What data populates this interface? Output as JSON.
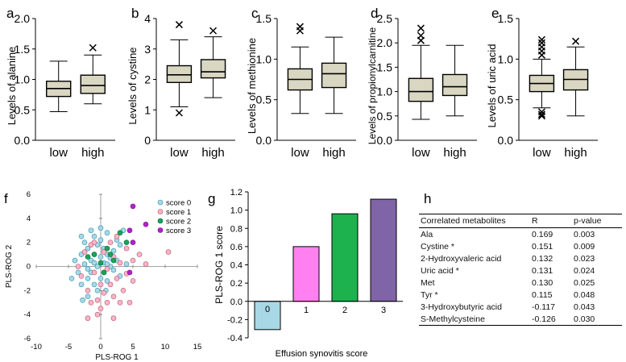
{
  "chart_data": [
    {
      "panel": "a",
      "type": "boxplot",
      "ylabel": "Levels of alanine",
      "ylim": [
        0,
        2
      ],
      "yticks": [
        0,
        0.5,
        1,
        1.5,
        2
      ],
      "categories": [
        "low",
        "high"
      ],
      "boxes": [
        {
          "category": "low",
          "whislo": 0.47,
          "q1": 0.72,
          "med": 0.85,
          "q3": 0.97,
          "whishi": 1.3,
          "fliers": []
        },
        {
          "category": "high",
          "whislo": 0.6,
          "q1": 0.77,
          "med": 0.9,
          "q3": 1.07,
          "whishi": 1.4,
          "fliers": [
            1.52
          ]
        }
      ]
    },
    {
      "panel": "b",
      "type": "boxplot",
      "ylabel": "Levels of cystine",
      "ylim": [
        0,
        4
      ],
      "yticks": [
        0,
        1,
        2,
        3,
        4
      ],
      "categories": [
        "low",
        "high"
      ],
      "boxes": [
        {
          "category": "low",
          "whislo": 1.1,
          "q1": 1.9,
          "med": 2.15,
          "q3": 2.45,
          "whishi": 3.3,
          "fliers": [
            3.8,
            0.9
          ]
        },
        {
          "category": "high",
          "whislo": 1.4,
          "q1": 2.05,
          "med": 2.25,
          "q3": 2.65,
          "whishi": 3.4,
          "fliers": [
            3.6
          ]
        }
      ]
    },
    {
      "panel": "c",
      "type": "boxplot",
      "ylabel": "Levels of methionine",
      "ylim": [
        0,
        1.5
      ],
      "yticks": [
        0,
        0.5,
        1,
        1.5
      ],
      "categories": [
        "low",
        "high"
      ],
      "boxes": [
        {
          "category": "low",
          "whislo": 0.33,
          "q1": 0.62,
          "med": 0.75,
          "q3": 0.88,
          "whishi": 1.15,
          "fliers": [
            1.35,
            1.4
          ]
        },
        {
          "category": "high",
          "whislo": 0.33,
          "q1": 0.65,
          "med": 0.82,
          "q3": 0.95,
          "whishi": 1.27,
          "fliers": []
        }
      ]
    },
    {
      "panel": "d",
      "type": "boxplot",
      "ylabel": "Levels of propionylcarnitine",
      "ylim": [
        0,
        2.5
      ],
      "yticks": [
        0,
        0.5,
        1,
        1.5,
        2,
        2.5
      ],
      "categories": [
        "low",
        "high"
      ],
      "boxes": [
        {
          "category": "low",
          "whislo": 0.43,
          "q1": 0.8,
          "med": 1.0,
          "q3": 1.27,
          "whishi": 1.95,
          "fliers": [
            2.05,
            2.15,
            2.3
          ]
        },
        {
          "category": "high",
          "whislo": 0.5,
          "q1": 0.92,
          "med": 1.1,
          "q3": 1.35,
          "whishi": 1.95,
          "fliers": []
        }
      ]
    },
    {
      "panel": "e",
      "type": "boxplot",
      "ylabel": "Levels of uric acid",
      "ylim": [
        0,
        1.5
      ],
      "yticks": [
        0,
        0.5,
        1,
        1.5
      ],
      "categories": [
        "low",
        "high"
      ],
      "boxes": [
        {
          "category": "low",
          "whislo": 0.4,
          "q1": 0.6,
          "med": 0.7,
          "q3": 0.8,
          "whishi": 1.0,
          "fliers": [
            1.05,
            1.1,
            1.15,
            1.2,
            1.24,
            0.35,
            0.32,
            0.3
          ]
        },
        {
          "category": "high",
          "whislo": 0.3,
          "q1": 0.62,
          "med": 0.75,
          "q3": 0.87,
          "whishi": 1.15,
          "fliers": [
            1.22
          ]
        }
      ]
    },
    {
      "panel": "f",
      "type": "scatter",
      "xlabel": "PLS-ROG 1",
      "ylabel": "PLS-ROG 2",
      "xlim": [
        -10,
        15
      ],
      "ylim": [
        -6,
        6
      ],
      "xticks": [
        -10,
        -5,
        0,
        5,
        10,
        15
      ],
      "yticks": [
        -6,
        -4,
        -2,
        0,
        2,
        4,
        6
      ],
      "legend_position": "top-right",
      "series": [
        {
          "name": "score 0",
          "color": "#a9d8e6",
          "edge": "#2f8fb0",
          "points": [
            [
              -4,
              0.5
            ],
            [
              -3.5,
              -0.5
            ],
            [
              -3,
              1
            ],
            [
              -3,
              -1.5
            ],
            [
              -2.5,
              0.2
            ],
            [
              -2.5,
              2
            ],
            [
              -2,
              -1
            ],
            [
              -2,
              1.5
            ],
            [
              -2,
              -2.5
            ],
            [
              -1.5,
              0.5
            ],
            [
              -1.5,
              3
            ],
            [
              -1.5,
              -0.5
            ],
            [
              -1,
              1
            ],
            [
              -1,
              -1.5
            ],
            [
              -1,
              2.5
            ],
            [
              -0.5,
              0
            ],
            [
              -0.5,
              1.8
            ],
            [
              -0.5,
              -2
            ],
            [
              0,
              0.8
            ],
            [
              0,
              -1
            ],
            [
              0,
              2.2
            ],
            [
              0.5,
              0.3
            ],
            [
              0.5,
              -0.5
            ],
            [
              0.5,
              1.5
            ],
            [
              1,
              1
            ],
            [
              1,
              -1.2
            ],
            [
              1,
              2.8
            ],
            [
              1.5,
              0
            ],
            [
              1.5,
              0.7
            ],
            [
              2,
              -0.3
            ],
            [
              2,
              1.3
            ],
            [
              2.5,
              0.5
            ],
            [
              3,
              -0.8
            ],
            [
              3,
              1.8
            ],
            [
              4,
              0.2
            ],
            [
              -3,
              2.5
            ],
            [
              -4.5,
              -1
            ],
            [
              -2,
              -0.2
            ],
            [
              1,
              0.2
            ],
            [
              2.5,
              2.2
            ],
            [
              0,
              3.2
            ],
            [
              -1,
              0.3
            ],
            [
              0.8,
              -2
            ],
            [
              -2.8,
              -2.8
            ],
            [
              3.5,
              3
            ]
          ]
        },
        {
          "name": "score 1",
          "color": "#f7b6c8",
          "edge": "#c0506a",
          "points": [
            [
              -3,
              -0.8
            ],
            [
              -2.5,
              1.2
            ],
            [
              -2,
              -2
            ],
            [
              -1.5,
              -3
            ],
            [
              -1,
              -0.5
            ],
            [
              -0.5,
              -2.8
            ],
            [
              0,
              -1.5
            ],
            [
              0,
              -3.5
            ],
            [
              0.5,
              -2.2
            ],
            [
              1,
              -0.2
            ],
            [
              1,
              -3
            ],
            [
              1.5,
              -1.5
            ],
            [
              1.5,
              2
            ],
            [
              2,
              -2.5
            ],
            [
              2,
              0.8
            ],
            [
              2.5,
              -1
            ],
            [
              3,
              0.3
            ],
            [
              3.5,
              -2
            ],
            [
              4,
              -0.6
            ],
            [
              4,
              1.5
            ],
            [
              5,
              0.5
            ],
            [
              5,
              -1.2
            ],
            [
              6,
              1
            ],
            [
              7,
              0.2
            ],
            [
              10.5,
              1.2
            ],
            [
              -2,
              -4.3
            ],
            [
              2,
              -4.3
            ],
            [
              -0.5,
              -4
            ],
            [
              -1.5,
              1.8
            ],
            [
              0.5,
              1.2
            ],
            [
              3,
              -3
            ],
            [
              -3.5,
              0
            ],
            [
              2.5,
              2.5
            ],
            [
              -1,
              2
            ],
            [
              4.5,
              -3
            ]
          ]
        },
        {
          "name": "score 2",
          "color": "#1aa35a",
          "edge": "#0b6e38",
          "points": [
            [
              -1,
              1
            ],
            [
              0,
              0.3
            ],
            [
              1,
              1.5
            ],
            [
              2,
              0.5
            ],
            [
              3,
              2.8
            ],
            [
              0.5,
              -0.5
            ],
            [
              4,
              2
            ],
            [
              -2,
              0.8
            ],
            [
              1.5,
              1
            ]
          ]
        },
        {
          "name": "score 3",
          "color": "#b022c8",
          "edge": "#7a0f8c",
          "points": [
            [
              5,
              5
            ],
            [
              7,
              3.5
            ],
            [
              4.5,
              3
            ],
            [
              5,
              2
            ],
            [
              4.5,
              -0.5
            ]
          ]
        }
      ]
    },
    {
      "panel": "g",
      "type": "bar",
      "xlabel": "Effusion synovitis score",
      "ylabel": "PLS-ROG 1 score",
      "ylim": [
        -0.4,
        1.2
      ],
      "yticks": [
        -0.4,
        -0.2,
        0.0,
        0.2,
        0.4,
        0.6,
        0.8,
        1.0,
        1.2
      ],
      "categories": [
        "0",
        "1",
        "2",
        "3"
      ],
      "values": [
        -0.31,
        0.6,
        0.96,
        1.12
      ],
      "colors": [
        "#a8d8e6",
        "#ff80f0",
        "#1db24e",
        "#8064a8"
      ]
    }
  ],
  "panel_labels": [
    "a",
    "b",
    "c",
    "d",
    "e",
    "f",
    "g",
    "h"
  ],
  "table": {
    "panel": "h",
    "headers": [
      "Correlated metabolites",
      "R",
      "p-value"
    ],
    "rows": [
      [
        "Ala",
        "0.169",
        "0.003"
      ],
      [
        "Cystine *",
        "0.151",
        "0.009"
      ],
      [
        "2-Hydroxyvaleric acid",
        "0.132",
        "0.023"
      ],
      [
        "Uric acid *",
        "0.131",
        "0.024"
      ],
      [
        "Met",
        "0.130",
        "0.025"
      ],
      [
        "Tyr *",
        "0.115",
        "0.048"
      ],
      [
        "3-Hydroxybutyric acid",
        "-0.117",
        "0.043"
      ],
      [
        "S-Methylcysteine",
        "-0.126",
        "0.030"
      ]
    ]
  },
  "colors": {
    "box_fill": "#d9d6c2",
    "axis": "#000000"
  }
}
